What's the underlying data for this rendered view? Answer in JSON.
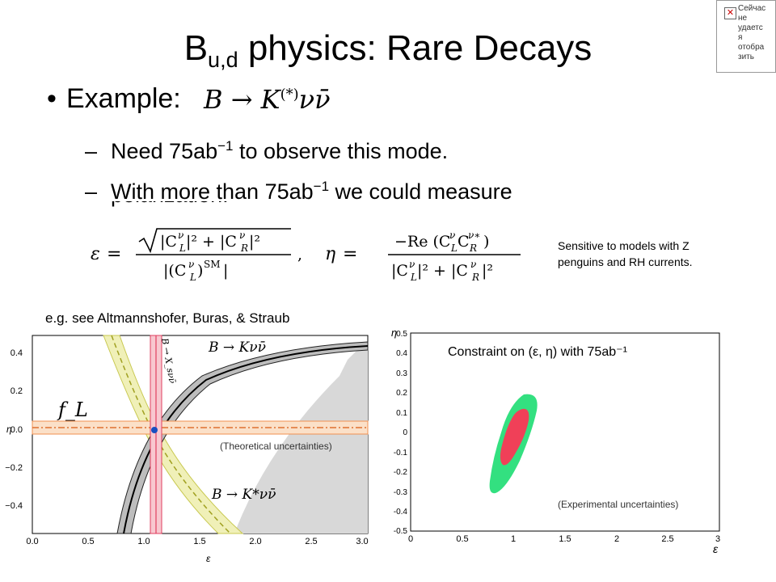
{
  "title": {
    "main": "B",
    "sub": "u,d",
    "rest": " physics: Rare Decays"
  },
  "bullet": {
    "marker": "•",
    "label": "Example:",
    "formula_prefix": "B → K",
    "formula_sup": "(*)",
    "formula_suffix": "νν̄"
  },
  "sub_bullets": [
    {
      "marker": "–",
      "pre": "Need 75ab",
      "sup": "−1",
      "post": " to observe this mode."
    },
    {
      "marker": "–",
      "pre": "With more than 75ab",
      "sup": "−1",
      "post": " we could measure"
    }
  ],
  "cut_off_line": "polarization:",
  "eps_formula": {
    "lhs": "ε =",
    "num": "√(|C",
    "sep": ","
  },
  "eta_formula": {
    "lhs": "η ="
  },
  "sensitivity_note": "Sensitive to models with Z penguins and RH currents.",
  "reference": "e.g. see Altmannshofer, Buras, & Straub",
  "left_plot": {
    "ylabel": "η",
    "xlabel": "ε",
    "yticks": [
      "0.4",
      "0.2",
      "0.0",
      "−0.2",
      "−0.4"
    ],
    "xticks": [
      "0.0",
      "0.5",
      "1.0",
      "1.5",
      "2.0",
      "2.5",
      "3.0"
    ],
    "label_knn": "B → Kνν̄",
    "label_kstar": "B → K*νν̄",
    "label_xs": "B → X_sνν̄",
    "label_fl": "f_L",
    "note": "(Theoretical uncertainties)"
  },
  "right_plot": {
    "ylabel": "η",
    "xlabel": "ε",
    "title": "Constraint on (ε, η) with 75ab⁻¹",
    "yticks": [
      "0.5",
      "0.4",
      "0.3",
      "0.2",
      "0.1",
      "0",
      "-0.1",
      "-0.2",
      "-0.3",
      "-0.4",
      "-0.5"
    ],
    "xticks": [
      "0",
      "0.5",
      "1",
      "1.5",
      "2",
      "2.5",
      "3"
    ],
    "note": "(Experimental uncertainties)"
  },
  "widget_text": "Сейчас\nне\nудаетс\nя\nотобра\nзить",
  "widget_icon": "✕",
  "colors": {
    "band_gray": "#000000",
    "band_yellow": "#d8d870",
    "band_orange": "#f0a060",
    "band_red": "#e05060",
    "blob_green": "#33e080",
    "blob_red": "#f04058"
  }
}
